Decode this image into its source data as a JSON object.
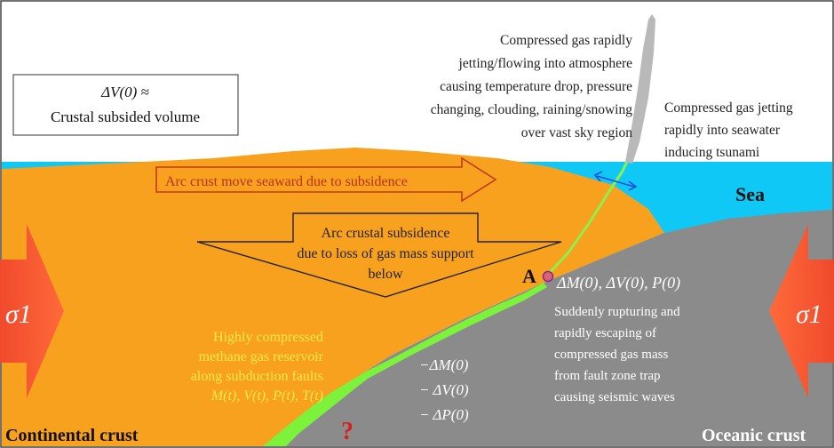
{
  "colors": {
    "sea": "#0fc8f5",
    "continental": "#f7a11f",
    "oceanic": "#8b8b8b",
    "fault_zone": "#7df23a",
    "stress_arrow": "#ef3b2c",
    "jet": "#b9b9b9",
    "point_a": "#e0607a",
    "red_question": "#d62020",
    "yellow_text": "#ffe94a"
  },
  "icons": {
    "stress_left": "right-arrow-icon",
    "stress_right": "left-arrow-icon",
    "seaward": "right-arrow-outline-icon",
    "subsidence": "down-arrow-outline-icon",
    "tsunami": "double-arrow-icon",
    "point": "point-marker-icon"
  },
  "volume_box": {
    "line1": "ΔV(0) ≈",
    "line2": "Crustal subsided volume"
  },
  "atmosphere_text": [
    "Compressed gas rapidly",
    "jetting/flowing into atmosphere",
    "causing temperature drop, pressure",
    "changing, clouding, raining/snowing",
    "over vast sky region"
  ],
  "seawater_text": [
    "Compressed gas jetting",
    "rapidly into seawater",
    "inducing tsunami"
  ],
  "sea_label": "Sea",
  "seaward_arrow_text": "Arc crust move seaward due to subsidence",
  "subsidence_arrow_text": [
    "Arc crustal subsidence",
    "due to loss of gas mass support",
    "below"
  ],
  "point_label": "A",
  "point_values": "ΔM(0), ΔV(0), P(0)",
  "rupture_text": [
    "Suddenly rupturing and",
    "rapidly escaping of",
    "compressed gas mass",
    "from fault zone trap",
    "causing seismic waves"
  ],
  "reservoir_text": [
    "Highly compressed",
    "methane gas reservoir",
    "along subduction faults",
    "M(t), V(t), P(t), T(t)"
  ],
  "loss_text": [
    "−ΔM(0)",
    "− ΔV(0)",
    "− ΔP(0)"
  ],
  "question_mark": "?",
  "sigma_left": "σ1",
  "sigma_right": "σ1",
  "continental_label": "Continental crust",
  "oceanic_label": "Oceanic crust"
}
